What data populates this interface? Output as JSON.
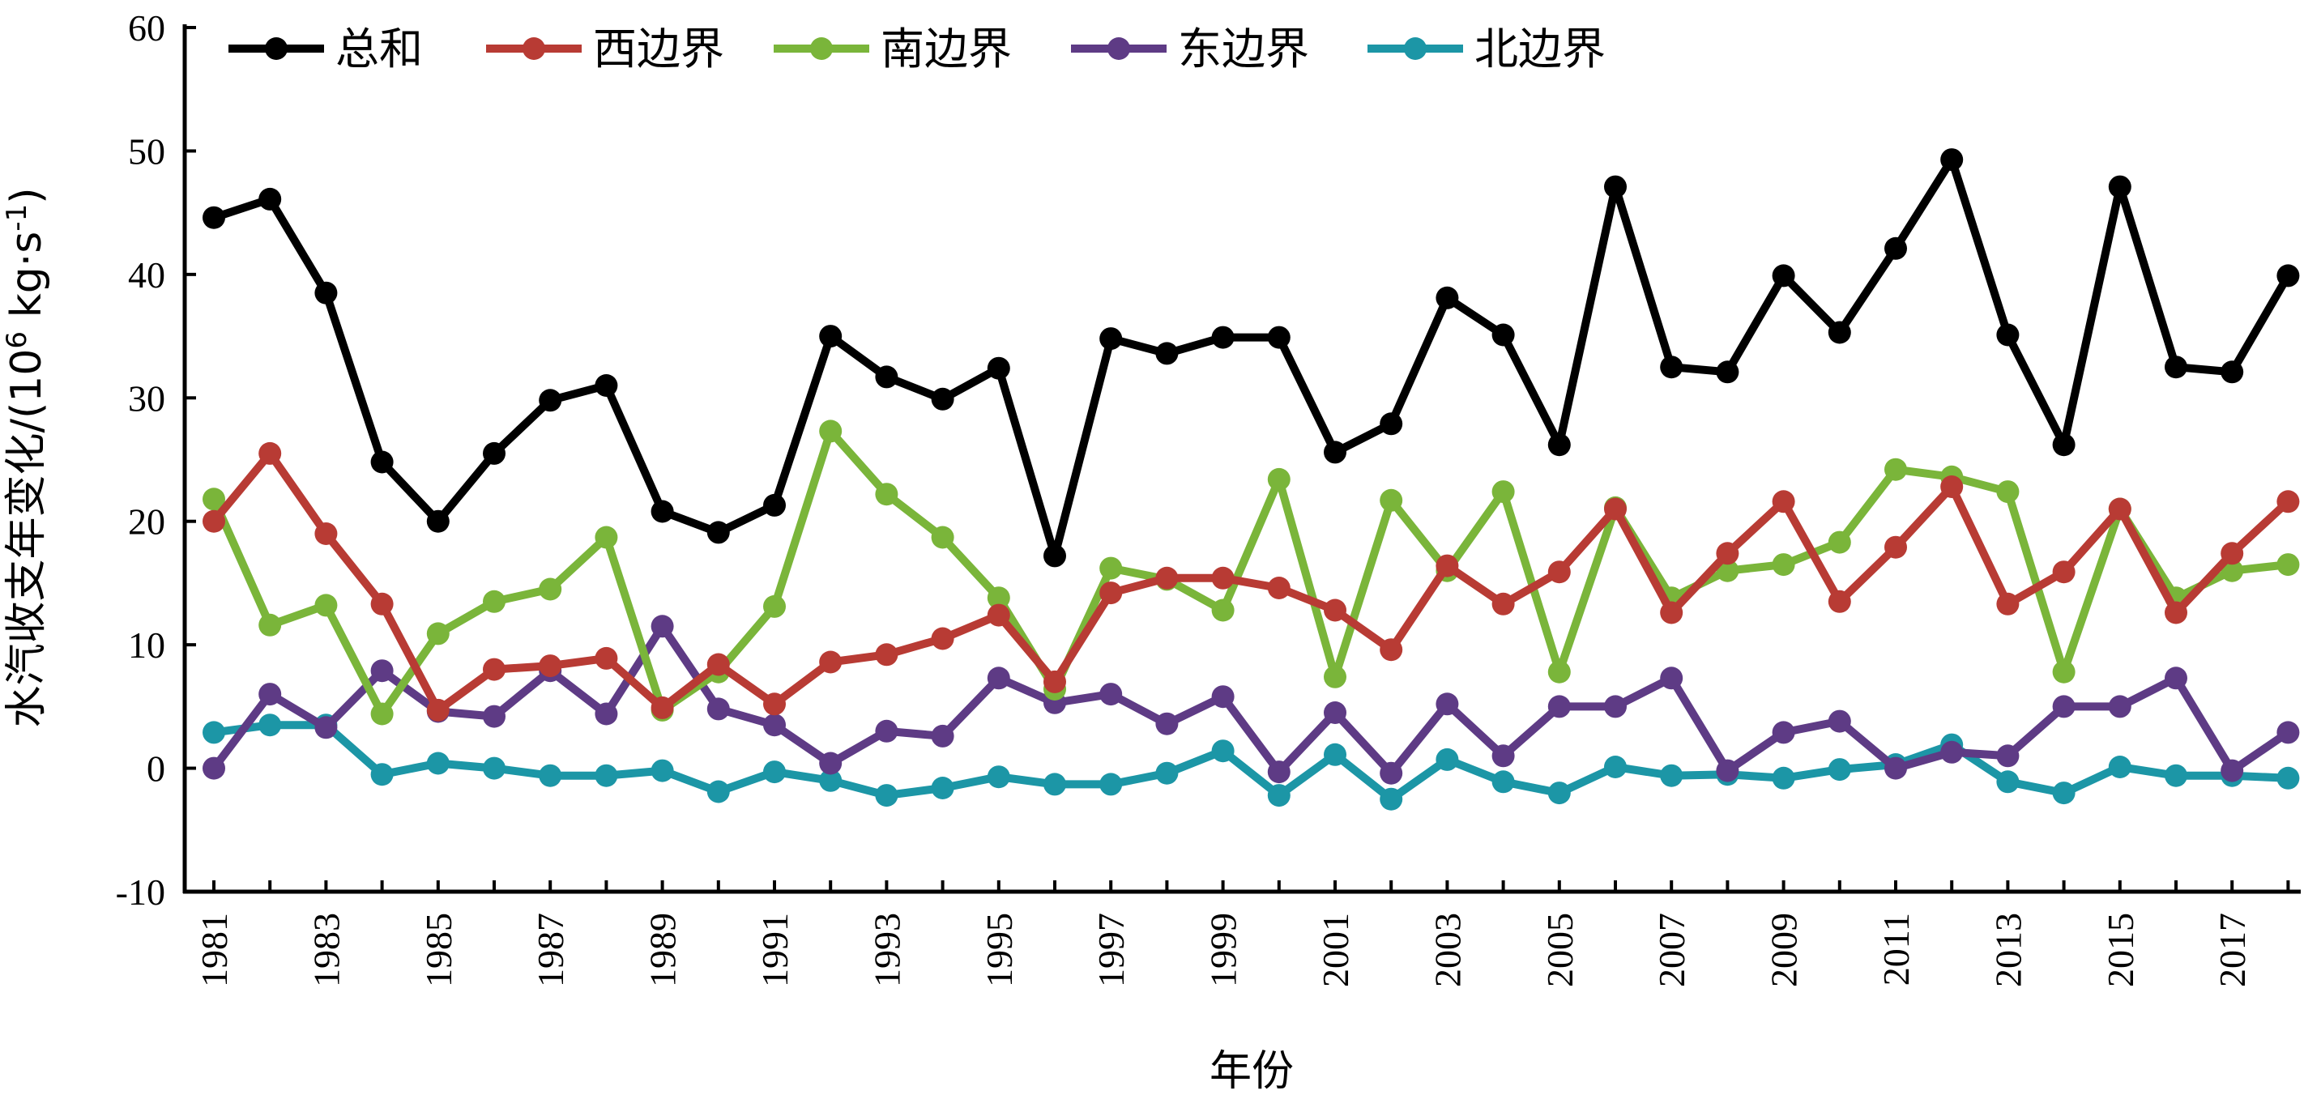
{
  "chart_data": {
    "type": "line",
    "xlabel": "年份",
    "ylabel_main": "水汽收支年变化/(10",
    "ylabel_sup1": "6",
    "ylabel_mid": " kg·s",
    "ylabel_sup2": "-1",
    "ylabel_end": ")",
    "ylim": [
      -10,
      60
    ],
    "yticks": [
      -10,
      0,
      10,
      20,
      30,
      40,
      50,
      60
    ],
    "grid": false,
    "legend_position": "top-left",
    "x": [
      1981,
      1982,
      1983,
      1984,
      1985,
      1986,
      1987,
      1988,
      1989,
      1990,
      1991,
      1992,
      1993,
      1994,
      1995,
      1996,
      1997,
      1998,
      1999,
      2000,
      2001,
      2002,
      2003,
      2004,
      2005,
      2006,
      2007,
      2008,
      2009,
      2010,
      2011,
      2012,
      2013,
      2014,
      2015,
      2016,
      2017,
      2018
    ],
    "xticks": [
      1981,
      1983,
      1985,
      1987,
      1989,
      1991,
      1993,
      1995,
      1997,
      1999,
      2001,
      2003,
      2005,
      2007,
      2009,
      2011,
      2013,
      2015,
      2017
    ],
    "series": [
      {
        "name": "总和",
        "color": "#000000",
        "values": [
          44.6,
          46.1,
          38.5,
          24.8,
          20.0,
          25.5,
          29.8,
          31.0,
          20.8,
          19.1,
          21.3,
          35.0,
          31.7,
          29.9,
          32.4,
          17.2,
          34.8,
          33.6,
          34.9,
          34.9,
          25.6,
          27.9,
          38.1,
          35.1,
          26.2,
          47.1,
          32.5,
          32.1,
          39.9,
          35.3,
          42.1,
          49.3,
          35.1,
          26.2,
          47.1,
          32.5,
          32.1,
          39.9
        ]
      },
      {
        "name": "西边界",
        "color": "#b83b34",
        "values": [
          20.0,
          25.5,
          19.0,
          13.3,
          4.7,
          8.0,
          8.3,
          8.9,
          4.9,
          8.4,
          5.2,
          8.6,
          9.2,
          10.5,
          12.4,
          7.0,
          14.2,
          15.4,
          15.4,
          14.6,
          12.8,
          9.6,
          16.4,
          13.3,
          15.9,
          21.0,
          12.6,
          17.4,
          21.6,
          13.5,
          17.9,
          22.8,
          13.3,
          15.9,
          21.0,
          12.6,
          17.4,
          21.6
        ]
      },
      {
        "name": "南边界",
        "color": "#7ab53a",
        "values": [
          21.8,
          11.6,
          13.2,
          4.4,
          10.9,
          13.5,
          14.5,
          18.7,
          4.7,
          7.8,
          13.1,
          27.3,
          22.2,
          18.7,
          13.8,
          6.4,
          16.2,
          15.3,
          12.8,
          23.4,
          7.4,
          21.7,
          16.0,
          22.4,
          7.8,
          21.1,
          13.8,
          16.0,
          16.5,
          18.3,
          24.2,
          23.6,
          22.4,
          7.8,
          21.0,
          13.8,
          16.0,
          16.5
        ]
      },
      {
        "name": "东边界",
        "color": "#5e3b85",
        "values": [
          0.0,
          6.0,
          3.3,
          7.9,
          4.6,
          4.2,
          7.9,
          4.4,
          11.5,
          4.8,
          3.5,
          0.4,
          3.0,
          2.6,
          7.3,
          5.3,
          6.0,
          3.6,
          5.8,
          -0.3,
          4.5,
          -0.4,
          5.2,
          1.0,
          5.0,
          5.0,
          7.3,
          -0.2,
          2.9,
          3.8,
          0.0,
          1.3,
          1.0,
          5.0,
          5.0,
          7.3,
          -0.2,
          2.9
        ]
      },
      {
        "name": "北边界",
        "color": "#1c96a6",
        "values": [
          2.9,
          3.5,
          3.5,
          -0.5,
          0.4,
          0.0,
          -0.6,
          -0.6,
          -0.2,
          -1.9,
          -0.3,
          -1.0,
          -2.2,
          -1.6,
          -0.7,
          -1.3,
          -1.3,
          -0.4,
          1.4,
          -2.2,
          1.1,
          -2.5,
          0.7,
          -1.1,
          -2.0,
          0.1,
          -0.6,
          -0.5,
          -0.8,
          -0.1,
          0.3,
          1.9,
          -1.1,
          -2.0,
          0.1,
          -0.6,
          -0.6,
          -0.8
        ]
      }
    ]
  }
}
